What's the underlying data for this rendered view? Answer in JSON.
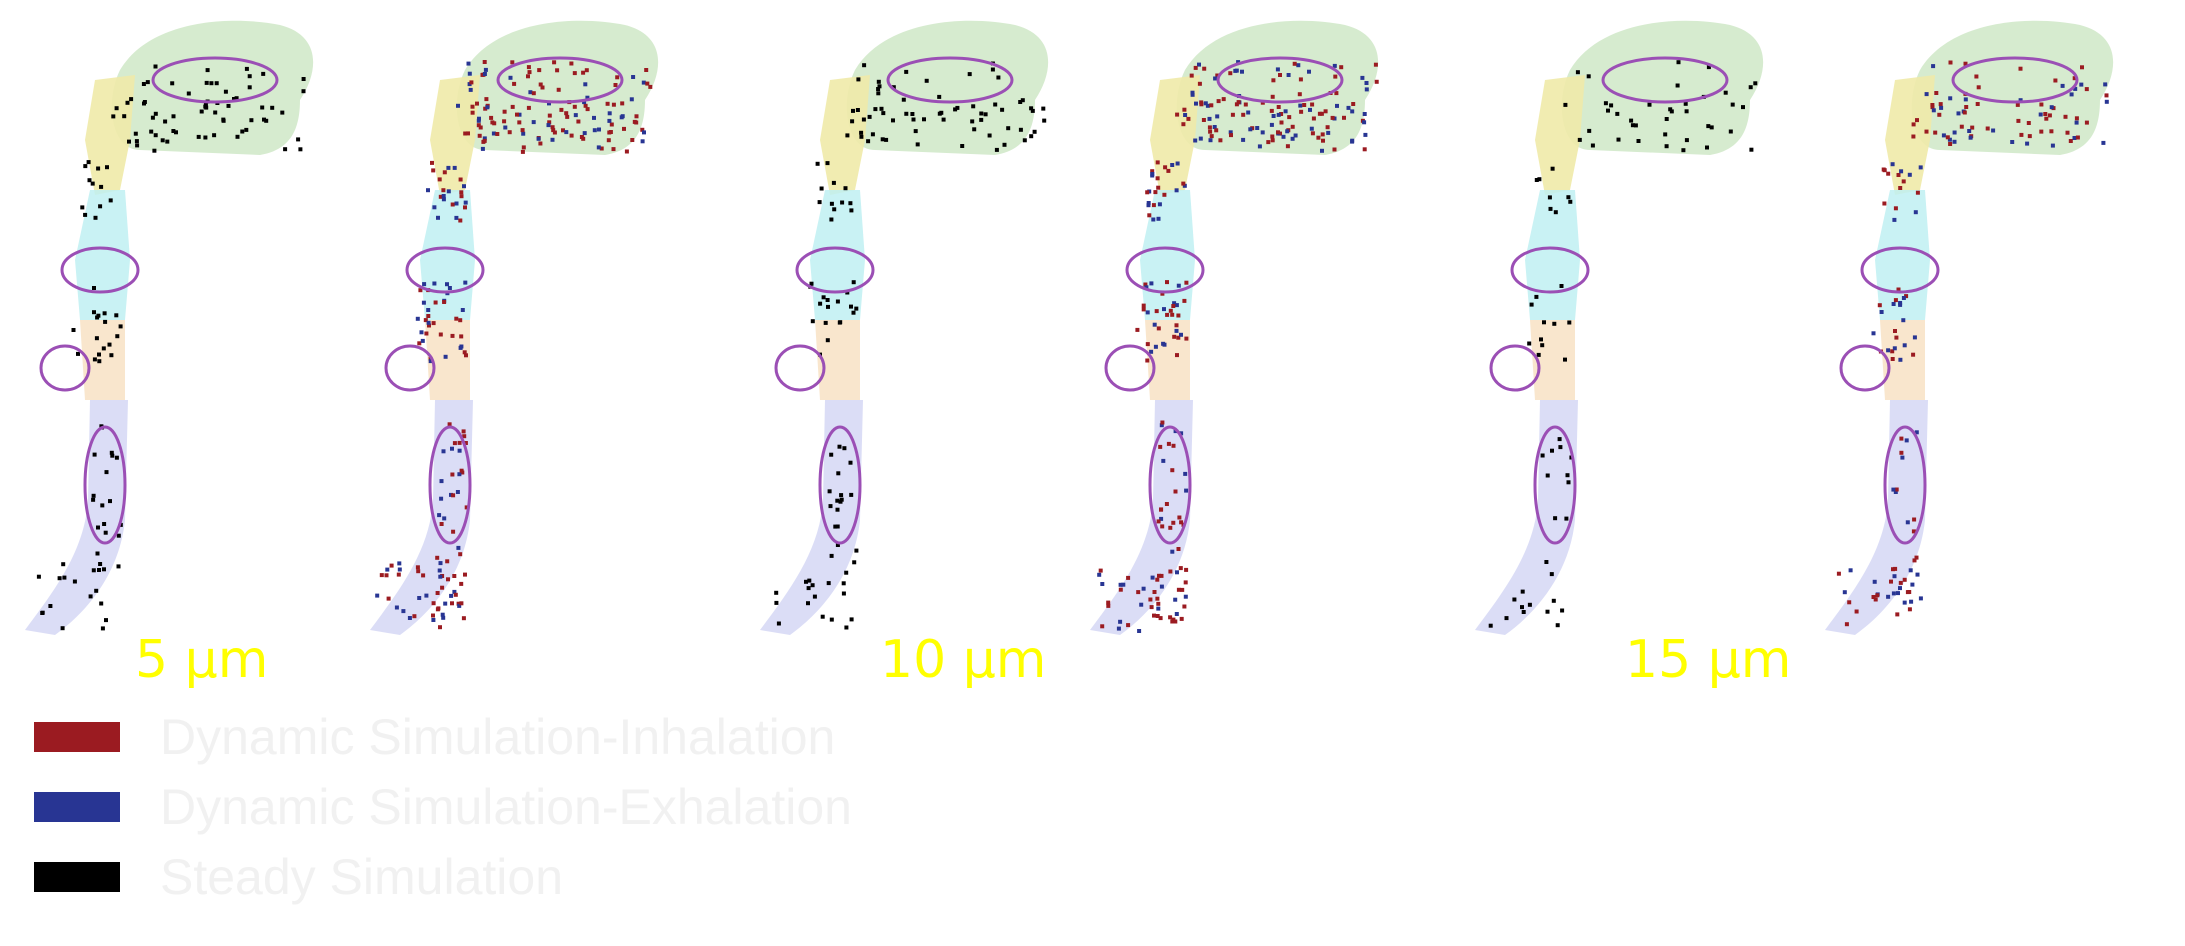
{
  "colors": {
    "inhalation": "#9b1b21",
    "exhalation": "#283593",
    "steady": "#000000",
    "highlight": "#9b4fb5",
    "label": "#ffff00",
    "legend_text": "#f1f1f1",
    "region_nasal": "#cfe8c7",
    "region_oral": "#efeaa8",
    "region_pharynx": "#bff0f2",
    "region_larynx": "#f8e3c8",
    "region_trachea": "#d9dbf5"
  },
  "size_labels": [
    "5 µm",
    "10 µm",
    "15 µm"
  ],
  "legend": [
    {
      "label": "Dynamic Simulation-Inhalation",
      "color": "#9b1b21"
    },
    {
      "label": "Dynamic Simulation-Exhalation",
      "color": "#283593"
    },
    {
      "label": "Steady Simulation",
      "color": "#000000"
    }
  ]
}
